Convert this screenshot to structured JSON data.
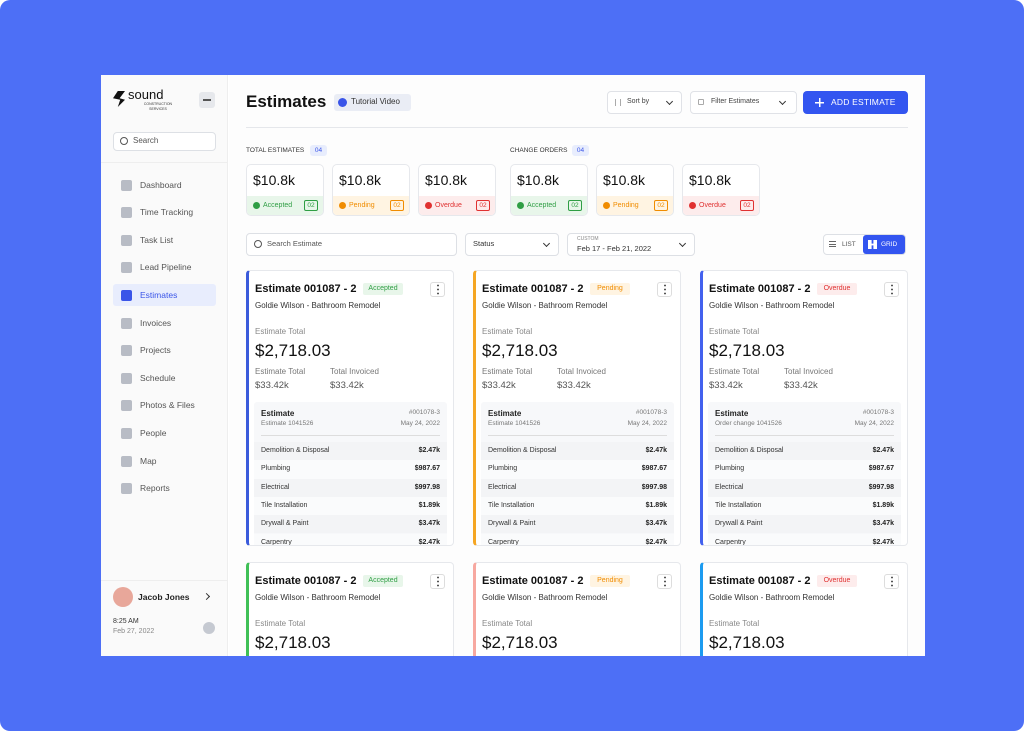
{
  "brand": {
    "name": "sound",
    "tagline": "CONSTRUCTION SERVICES"
  },
  "sidebar": {
    "search": "Search",
    "nav": [
      "Dashboard",
      "Time Tracking",
      "Task List",
      "Lead Pipeline",
      "Estimates",
      "Invoices",
      "Projects",
      "Schedule",
      "Photos & Files",
      "People",
      "Map",
      "Reports"
    ],
    "active_index": 4
  },
  "user": {
    "name": "Jacob Jones",
    "time": "8:25 AM",
    "date": "Feb 27, 2022"
  },
  "header": {
    "title": "Estimates",
    "tutorial": "Tutorial Video",
    "sort": "Sort by",
    "filter": "Filter Estimates",
    "add": "ADD ESTIMATE"
  },
  "summary": [
    {
      "label": "TOTAL ESTIMATES",
      "count": "04",
      "cards": [
        {
          "amount": "$10.8k",
          "status": "Accepted",
          "count": "02",
          "color": "#2f9e44",
          "bg": "#e8f6ea"
        },
        {
          "amount": "$10.8k",
          "status": "Pending",
          "count": "02",
          "color": "#f08c00",
          "bg": "#fff4e2"
        },
        {
          "amount": "$10.8k",
          "status": "Overdue",
          "count": "02",
          "color": "#e03131",
          "bg": "#fdecec"
        }
      ]
    },
    {
      "label": "CHANGE ORDERS",
      "count": "04",
      "cards": [
        {
          "amount": "$10.8k",
          "status": "Accepted",
          "count": "02",
          "color": "#2f9e44",
          "bg": "#e8f6ea"
        },
        {
          "amount": "$10.8k",
          "status": "Pending",
          "count": "02",
          "color": "#f08c00",
          "bg": "#fff4e2"
        },
        {
          "amount": "$10.8k",
          "status": "Overdue",
          "count": "02",
          "color": "#e03131",
          "bg": "#fdecec"
        }
      ]
    }
  ],
  "filters": {
    "search": "Search Estimate",
    "status": "Status",
    "custom": "CUSTOM",
    "range": "Feb 17 - Feb 21, 2022",
    "list": "LIST",
    "grid": "GRID"
  },
  "estimates": [
    {
      "title": "Estimate 001087 - 2",
      "status": "Accepted",
      "status_color": "#2f9e44",
      "status_bg": "#e8f6ea",
      "accent": "#3b5bdb",
      "client": "Goldie Wilson - Bathroom Remodel",
      "total_label": "Estimate Total",
      "total": "$2,718.03",
      "sub": [
        {
          "label": "Estimate Total",
          "value": "$33.42k"
        },
        {
          "label": "Total Invoiced",
          "value": "$33.42k"
        }
      ],
      "detail": {
        "title": "Estimate",
        "subtitle": "Estimate 1041526",
        "ref": "#001078-3",
        "date": "May 24, 2022",
        "items": [
          [
            "Demolition & Disposal",
            "$2.47k"
          ],
          [
            "Plumbing",
            "$987.67"
          ],
          [
            "Electrical",
            "$997.98"
          ],
          [
            "Tile Installation",
            "$1.89k"
          ],
          [
            "Drywall & Paint",
            "$3.47k"
          ],
          [
            "Carpentry",
            "$2.47k"
          ]
        ]
      }
    },
    {
      "title": "Estimate 001087 - 2",
      "status": "Pending",
      "status_color": "#f08c00",
      "status_bg": "#fff4e2",
      "accent": "#f5a623",
      "client": "Goldie Wilson - Bathroom Remodel",
      "total_label": "Estimate Total",
      "total": "$2,718.03",
      "sub": [
        {
          "label": "Estimate Total",
          "value": "$33.42k"
        },
        {
          "label": "Total Invoiced",
          "value": "$33.42k"
        }
      ],
      "detail": {
        "title": "Estimate",
        "subtitle": "Estimate 1041526",
        "ref": "#001078-3",
        "date": "May 24, 2022",
        "items": [
          [
            "Demolition & Disposal",
            "$2.47k"
          ],
          [
            "Plumbing",
            "$987.67"
          ],
          [
            "Electrical",
            "$997.98"
          ],
          [
            "Tile Installation",
            "$1.89k"
          ],
          [
            "Drywall & Paint",
            "$3.47k"
          ],
          [
            "Carpentry",
            "$2.47k"
          ]
        ]
      }
    },
    {
      "title": "Estimate 001087 - 2",
      "status": "Overdue",
      "status_color": "#e03131",
      "status_bg": "#fdecec",
      "accent": "#4361ee",
      "client": "Goldie Wilson - Bathroom Remodel",
      "total_label": "Estimate Total",
      "total": "$2,718.03",
      "sub": [
        {
          "label": "Estimate Total",
          "value": "$33.42k"
        },
        {
          "label": "Total Invoiced",
          "value": "$33.42k"
        }
      ],
      "detail": {
        "title": "Estimate",
        "subtitle": "Order change 1041526",
        "ref": "#001078-3",
        "date": "May 24, 2022",
        "items": [
          [
            "Demolition & Disposal",
            "$2.47k"
          ],
          [
            "Plumbing",
            "$987.67"
          ],
          [
            "Electrical",
            "$997.98"
          ],
          [
            "Tile Installation",
            "$1.89k"
          ],
          [
            "Drywall & Paint",
            "$3.47k"
          ],
          [
            "Carpentry",
            "$2.47k"
          ]
        ]
      }
    },
    {
      "title": "Estimate 001087 - 2",
      "status": "Accepted",
      "status_color": "#2f9e44",
      "status_bg": "#e8f6ea",
      "accent": "#40c057",
      "client": "Goldie Wilson - Bathroom Remodel",
      "total_label": "Estimate Total",
      "total": "$2,718.03"
    },
    {
      "title": "Estimate 001087 - 2",
      "status": "Pending",
      "status_color": "#f08c00",
      "status_bg": "#fff4e2",
      "accent": "#f7a8a0",
      "client": "Goldie Wilson - Bathroom Remodel",
      "total_label": "Estimate Total",
      "total": "$2,718.03"
    },
    {
      "title": "Estimate 001087 - 2",
      "status": "Overdue",
      "status_color": "#e03131",
      "status_bg": "#fdecec",
      "accent": "#1c9bf0",
      "client": "Goldie Wilson - Bathroom Remodel",
      "total_label": "Estimate Total",
      "total": "$2,718.03"
    }
  ]
}
